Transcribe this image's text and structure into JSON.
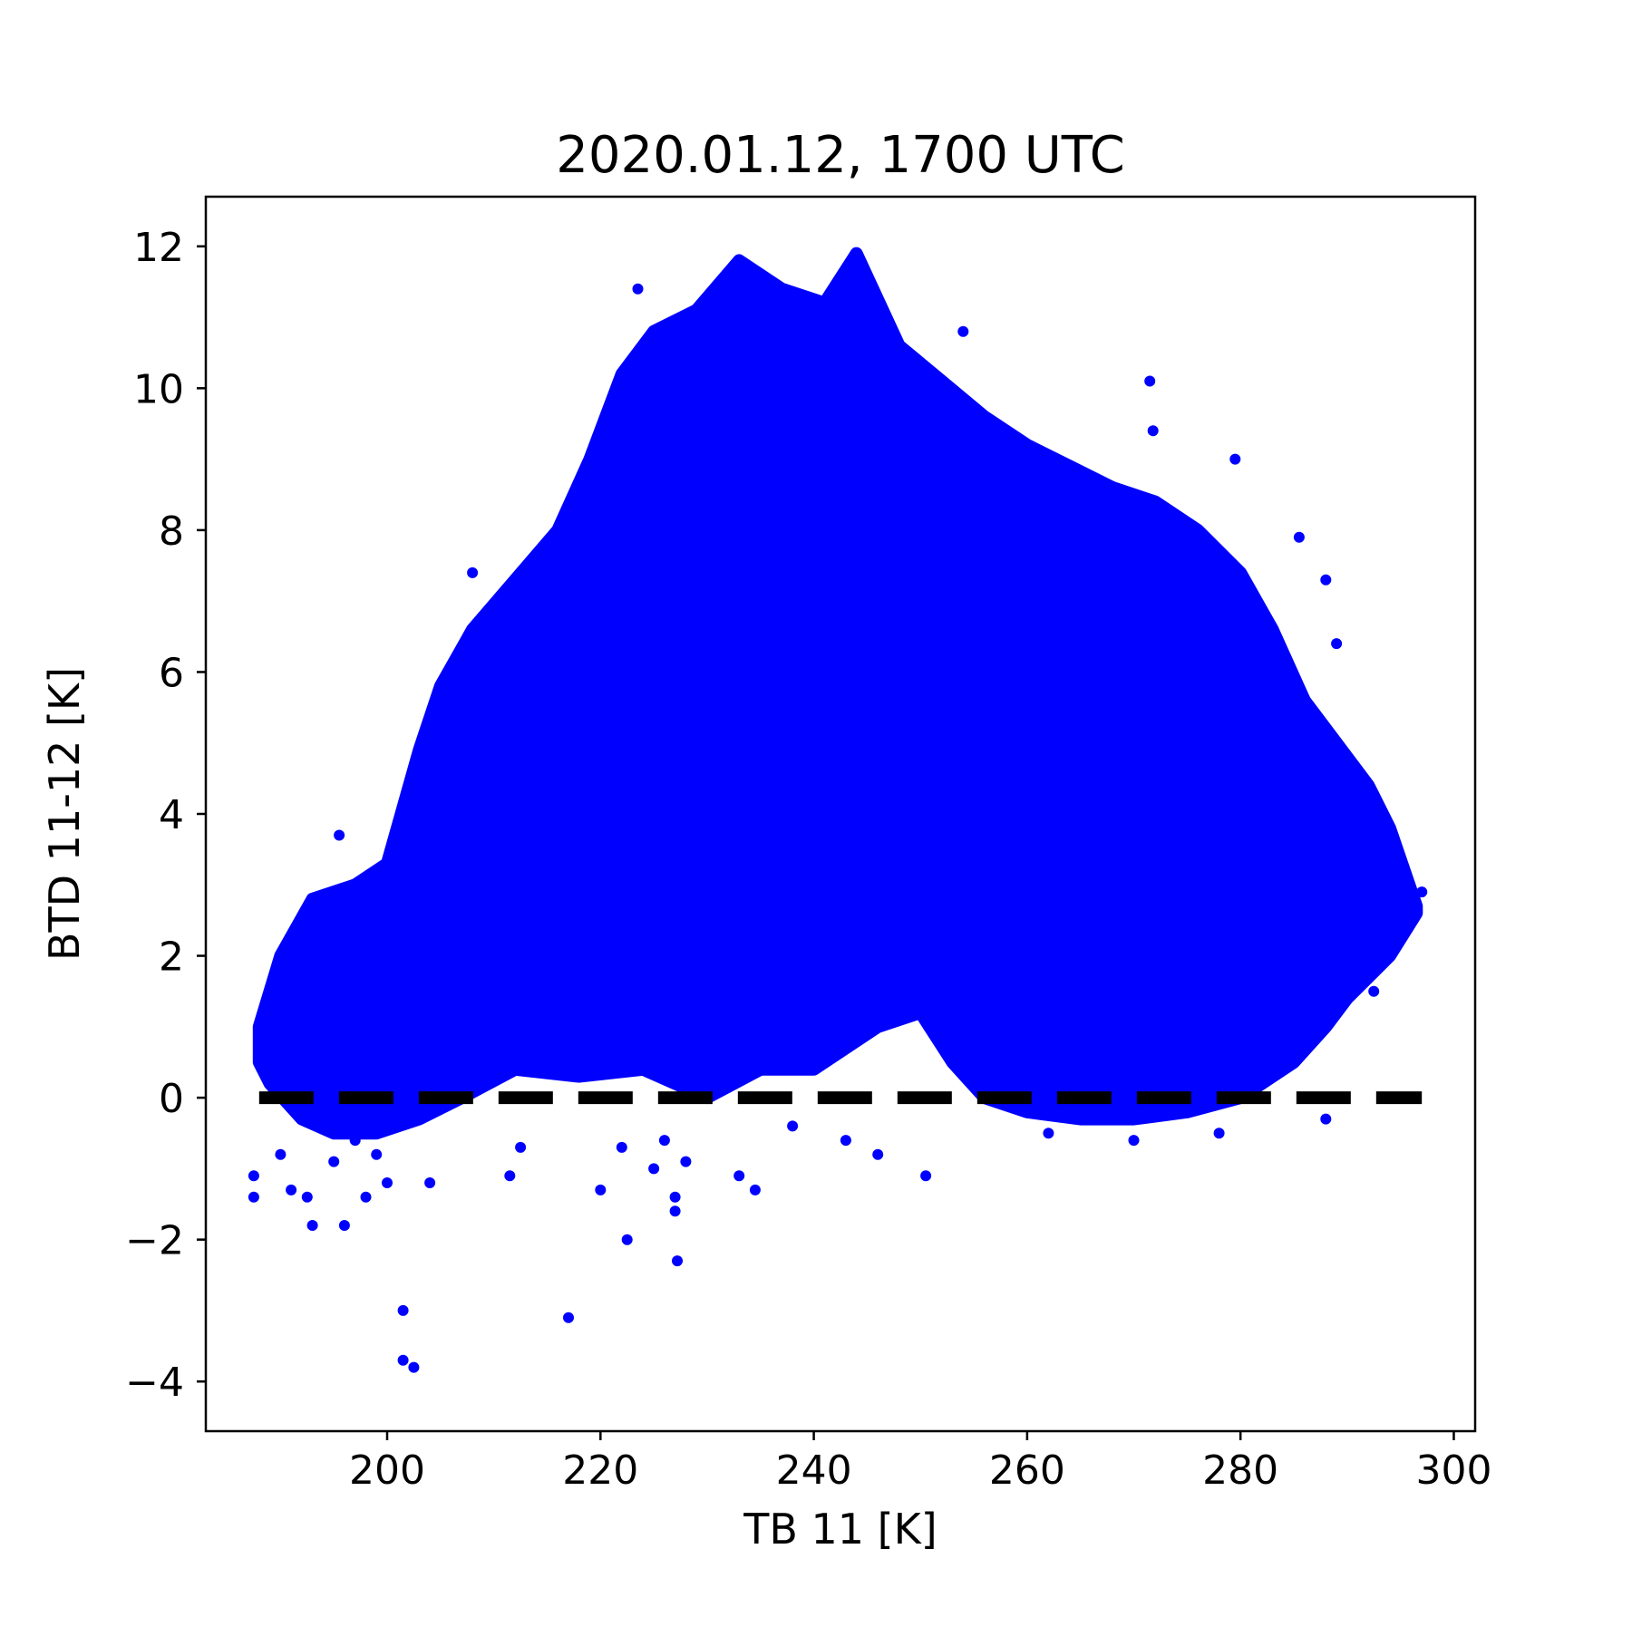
{
  "chart_data": {
    "type": "scatter",
    "title": "2020.01.12, 1700 UTC",
    "xlabel": "TB 11 [K]",
    "ylabel": "BTD 11-12 [K]",
    "xlim": [
      183,
      302
    ],
    "ylim": [
      -4.7,
      12.7
    ],
    "xticks": [
      200,
      220,
      240,
      260,
      280,
      300
    ],
    "yticks": [
      -4,
      -2,
      0,
      2,
      4,
      6,
      8,
      10,
      12
    ],
    "xtick_labels": [
      "200",
      "220",
      "240",
      "260",
      "280",
      "300"
    ],
    "ytick_labels": [
      "−4",
      "−2",
      "0",
      "2",
      "4",
      "6",
      "8",
      "10",
      "12"
    ],
    "grid": false,
    "series": [
      {
        "color": "#0000ff",
        "marker": "dot",
        "envelope_upper": [
          [
            188,
            1.0
          ],
          [
            190,
            2.0
          ],
          [
            193,
            2.8
          ],
          [
            197,
            3.0
          ],
          [
            200,
            3.3
          ],
          [
            203,
            4.9
          ],
          [
            205,
            5.8
          ],
          [
            208,
            6.6
          ],
          [
            212,
            7.3
          ],
          [
            216,
            8.0
          ],
          [
            219,
            9.0
          ],
          [
            222,
            10.2
          ],
          [
            225,
            10.8
          ],
          [
            229,
            11.1
          ],
          [
            233,
            11.8
          ],
          [
            237,
            11.4
          ],
          [
            241,
            11.2
          ],
          [
            244,
            11.9
          ],
          [
            248,
            10.6
          ],
          [
            252,
            10.1
          ],
          [
            256,
            9.6
          ],
          [
            260,
            9.2
          ],
          [
            264,
            8.9
          ],
          [
            268,
            8.6
          ],
          [
            272,
            8.4
          ],
          [
            276,
            8.0
          ],
          [
            280,
            7.4
          ],
          [
            283,
            6.6
          ],
          [
            286,
            5.6
          ],
          [
            289,
            5.0
          ],
          [
            292,
            4.4
          ],
          [
            294,
            3.8
          ],
          [
            296.5,
            2.7
          ]
        ],
        "envelope_lower": [
          [
            296.5,
            2.6
          ],
          [
            294,
            2.0
          ],
          [
            292,
            1.7
          ],
          [
            290,
            1.4
          ],
          [
            288,
            1.0
          ],
          [
            285,
            0.5
          ],
          [
            280,
            0.0
          ],
          [
            275,
            -0.2
          ],
          [
            270,
            -0.3
          ],
          [
            265,
            -0.3
          ],
          [
            260,
            -0.2
          ],
          [
            256,
            0.0
          ],
          [
            253,
            0.5
          ],
          [
            250,
            1.2
          ],
          [
            246,
            1.0
          ],
          [
            240,
            0.4
          ],
          [
            235,
            0.4
          ],
          [
            230,
            0.0
          ],
          [
            224,
            0.4
          ],
          [
            218,
            0.3
          ],
          [
            212,
            0.4
          ],
          [
            207,
            0.0
          ],
          [
            203,
            -0.3
          ],
          [
            199,
            -0.5
          ],
          [
            195,
            -0.5
          ],
          [
            192,
            -0.3
          ],
          [
            189,
            0.2
          ],
          [
            188,
            0.5
          ]
        ],
        "outliers": [
          [
            187.5,
            -1.1
          ],
          [
            187.5,
            -1.4
          ],
          [
            190,
            -0.8
          ],
          [
            191,
            -1.3
          ],
          [
            192.5,
            -1.4
          ],
          [
            193,
            -1.8
          ],
          [
            195,
            -0.9
          ],
          [
            196,
            -1.8
          ],
          [
            197,
            -0.6
          ],
          [
            198,
            -1.4
          ],
          [
            199,
            -0.8
          ],
          [
            200,
            -1.2
          ],
          [
            201.5,
            -3.0
          ],
          [
            201.5,
            -3.7
          ],
          [
            202.5,
            -3.8
          ],
          [
            204,
            -1.2
          ],
          [
            211.5,
            -1.1
          ],
          [
            212.5,
            -0.7
          ],
          [
            217,
            -3.1
          ],
          [
            220,
            -1.3
          ],
          [
            222,
            -0.7
          ],
          [
            222.5,
            -2.0
          ],
          [
            225,
            -1.0
          ],
          [
            226,
            -0.6
          ],
          [
            227,
            -1.4
          ],
          [
            227,
            -1.6
          ],
          [
            227.2,
            -2.3
          ],
          [
            228,
            -0.9
          ],
          [
            233,
            -1.1
          ],
          [
            234.5,
            -1.3
          ],
          [
            238,
            -0.4
          ],
          [
            243,
            -0.6
          ],
          [
            246,
            -0.8
          ],
          [
            250.5,
            -1.1
          ],
          [
            262,
            -0.5
          ],
          [
            270,
            -0.6
          ],
          [
            278,
            -0.5
          ],
          [
            288,
            -0.3
          ],
          [
            271.5,
            10.1
          ],
          [
            271.8,
            9.4
          ],
          [
            279.5,
            9.0
          ],
          [
            285.5,
            7.9
          ],
          [
            288,
            7.3
          ],
          [
            289,
            6.4
          ],
          [
            254,
            10.8
          ],
          [
            223.5,
            11.4
          ],
          [
            208,
            7.4
          ],
          [
            195.5,
            3.7
          ],
          [
            292.5,
            1.5
          ],
          [
            297,
            2.9
          ]
        ]
      },
      {
        "color": "#000000",
        "style": "dashed",
        "x": [
          188,
          297
        ],
        "y": [
          0,
          0
        ]
      }
    ]
  }
}
